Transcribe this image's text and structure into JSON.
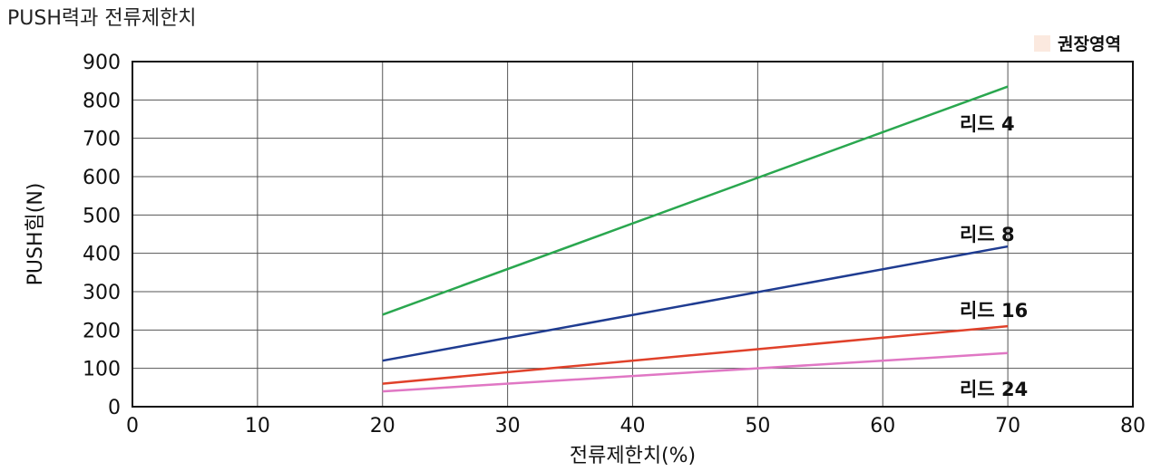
{
  "chart_data": {
    "type": "line",
    "title": "PUSH력과 전류제한치",
    "xlabel": "전류제한치(%)",
    "ylabel": "PUSH힘(N)",
    "xlim": [
      0,
      80
    ],
    "ylim": [
      0,
      900
    ],
    "x_ticks": [
      "0",
      "10",
      "20",
      "30",
      "40",
      "50",
      "60",
      "70",
      "80"
    ],
    "y_ticks": [
      "0",
      "100",
      "200",
      "300",
      "400",
      "500",
      "600",
      "700",
      "800",
      "900"
    ],
    "grid": true,
    "legend": {
      "label": "권장영역",
      "color": "#fbe9df",
      "position": "top-right"
    },
    "series": [
      {
        "name": "리드 4",
        "color": "#2aa74f",
        "x": [
          20,
          70
        ],
        "y": [
          240,
          835
        ]
      },
      {
        "name": "리드 8",
        "color": "#1f3c91",
        "x": [
          20,
          70
        ],
        "y": [
          120,
          418
        ]
      },
      {
        "name": "리드 16",
        "color": "#e0412a",
        "x": [
          20,
          70
        ],
        "y": [
          60,
          210
        ]
      },
      {
        "name": "리드 24",
        "color": "#e077c4",
        "x": [
          20,
          70
        ],
        "y": [
          40,
          140
        ]
      }
    ]
  }
}
